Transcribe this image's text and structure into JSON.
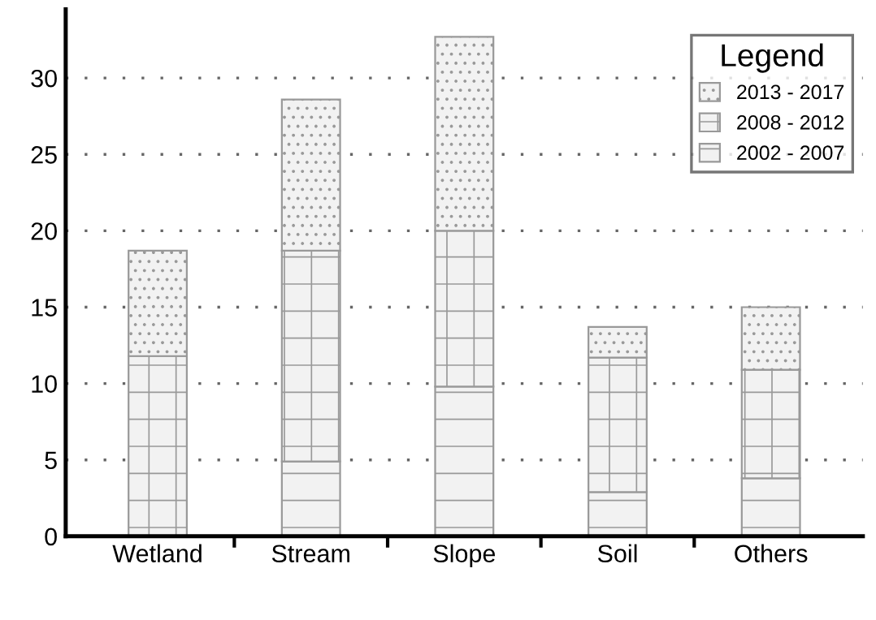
{
  "chart_data": {
    "type": "bar",
    "stacked": true,
    "legend_title": "Legend",
    "legend": "top right",
    "grid": "y",
    "categories": [
      "Wetland",
      "Stream",
      "Slope",
      "Soil",
      "Others"
    ],
    "series": [
      {
        "name": "2002 - 2007",
        "color": "#999999",
        "values": [
          0,
          4.9,
          9.8,
          2.9,
          3.8
        ]
      },
      {
        "name": "2008 - 2012",
        "color": "#999999",
        "values": [
          11.8,
          13.8,
          10.2,
          8.8,
          7.1
        ]
      },
      {
        "name": "2013 - 2017",
        "color": "#999999",
        "values": [
          6.9,
          9.9,
          12.7,
          2.0,
          4.1
        ]
      }
    ],
    "ylim": [
      0,
      34.5
    ],
    "yticks": [
      0,
      5,
      10,
      15,
      20,
      25,
      30
    ]
  }
}
